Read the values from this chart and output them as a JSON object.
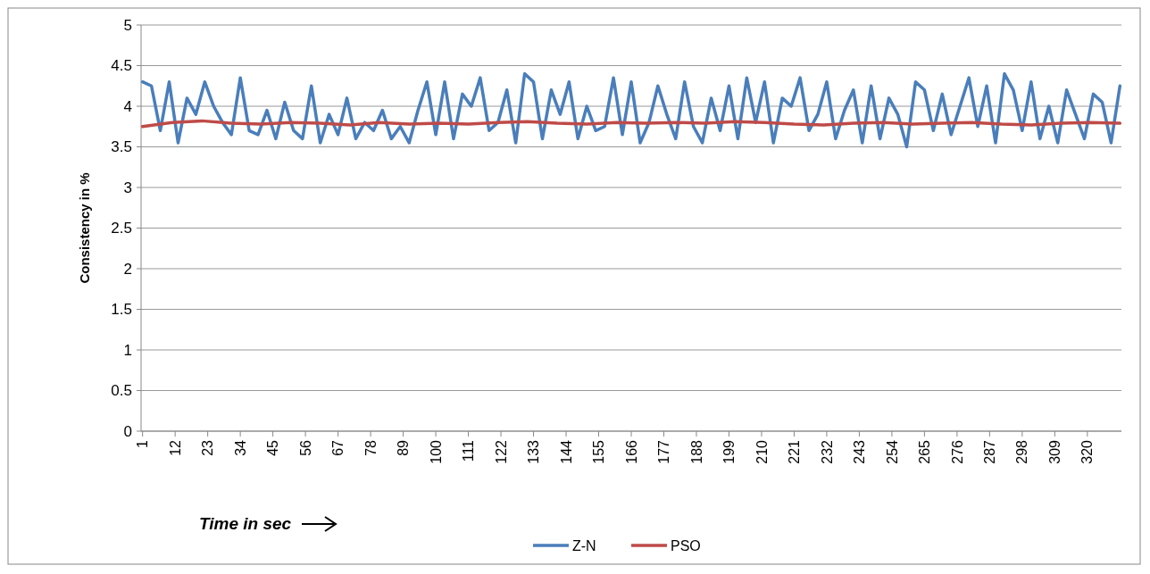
{
  "chart_data": {
    "type": "line",
    "xlabel": "Time in sec",
    "ylabel": "Consistency in %",
    "xlim": [
      0.5,
      331.5
    ],
    "ylim": [
      0,
      5
    ],
    "xticks": [
      1,
      12,
      23,
      34,
      45,
      56,
      67,
      78,
      89,
      100,
      111,
      122,
      133,
      144,
      155,
      166,
      177,
      188,
      199,
      210,
      221,
      232,
      243,
      254,
      265,
      276,
      287,
      298,
      309,
      320
    ],
    "yticks": [
      0,
      0.5,
      1,
      1.5,
      2,
      2.5,
      3,
      3.5,
      4,
      4.5,
      5
    ],
    "grid": "y",
    "legend": "bottom",
    "line_style": "solid",
    "marker": "none",
    "series": [
      {
        "name": "Z-N",
        "color": "#4a7ebb",
        "x": [
          1,
          4,
          7,
          10,
          13,
          16,
          19,
          22,
          25,
          28,
          31,
          34,
          37,
          40,
          43,
          46,
          49,
          52,
          55,
          58,
          61,
          64,
          67,
          70,
          73,
          76,
          79,
          82,
          85,
          88,
          91,
          94,
          97,
          100,
          103,
          106,
          109,
          112,
          115,
          118,
          121,
          124,
          127,
          130,
          133,
          136,
          139,
          142,
          145,
          148,
          151,
          154,
          157,
          160,
          163,
          166,
          169,
          172,
          175,
          178,
          181,
          184,
          187,
          190,
          193,
          196,
          199,
          202,
          205,
          208,
          211,
          214,
          217,
          220,
          223,
          226,
          229,
          232,
          235,
          238,
          241,
          244,
          247,
          250,
          253,
          256,
          259,
          262,
          265,
          268,
          271,
          274,
          277,
          280,
          283,
          286,
          289,
          292,
          295,
          298,
          301,
          304,
          307,
          310,
          313,
          316,
          319,
          322,
          325,
          328,
          331
        ],
        "values": [
          4.3,
          4.25,
          3.7,
          4.3,
          3.55,
          4.1,
          3.9,
          4.3,
          4.0,
          3.8,
          3.65,
          4.35,
          3.7,
          3.65,
          3.95,
          3.6,
          4.05,
          3.7,
          3.6,
          4.25,
          3.55,
          3.9,
          3.65,
          4.1,
          3.6,
          3.8,
          3.7,
          3.95,
          3.6,
          3.75,
          3.55,
          3.95,
          4.3,
          3.65,
          4.3,
          3.6,
          4.15,
          4.0,
          4.35,
          3.7,
          3.8,
          4.2,
          3.55,
          4.4,
          4.3,
          3.6,
          4.2,
          3.9,
          4.3,
          3.6,
          4.0,
          3.7,
          3.75,
          4.35,
          3.65,
          4.3,
          3.55,
          3.8,
          4.25,
          3.9,
          3.6,
          4.3,
          3.75,
          3.55,
          4.1,
          3.7,
          4.25,
          3.6,
          4.35,
          3.8,
          4.3,
          3.55,
          4.1,
          4.0,
          4.35,
          3.7,
          3.9,
          4.3,
          3.6,
          3.95,
          4.2,
          3.55,
          4.25,
          3.6,
          4.1,
          3.9,
          3.5,
          4.3,
          4.2,
          3.7,
          4.15,
          3.65,
          4.0,
          4.35,
          3.75,
          4.25,
          3.55,
          4.4,
          4.2,
          3.7,
          4.3,
          3.6,
          4.0,
          3.55,
          4.2,
          3.9,
          3.6,
          4.15,
          4.05,
          3.55,
          4.25
        ]
      },
      {
        "name": "PSO",
        "color": "#be4b48",
        "x": [
          1,
          11,
          21,
          31,
          41,
          51,
          61,
          71,
          81,
          91,
          101,
          111,
          121,
          131,
          141,
          151,
          161,
          171,
          181,
          191,
          201,
          211,
          221,
          231,
          241,
          251,
          261,
          271,
          281,
          291,
          301,
          311,
          321,
          331
        ],
        "values": [
          3.75,
          3.8,
          3.82,
          3.79,
          3.78,
          3.8,
          3.79,
          3.77,
          3.8,
          3.78,
          3.79,
          3.78,
          3.8,
          3.81,
          3.79,
          3.78,
          3.8,
          3.79,
          3.8,
          3.79,
          3.81,
          3.8,
          3.78,
          3.77,
          3.79,
          3.8,
          3.78,
          3.79,
          3.8,
          3.78,
          3.77,
          3.79,
          3.8,
          3.79
        ]
      }
    ]
  }
}
